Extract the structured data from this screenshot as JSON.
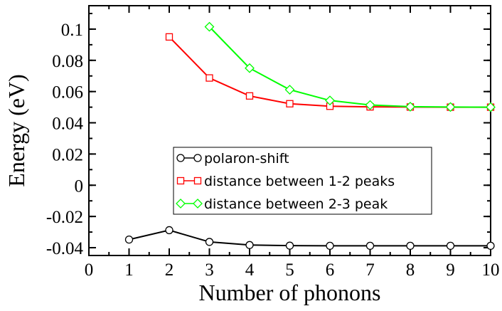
{
  "chart_data": {
    "type": "line",
    "xlabel": "Number of phonons",
    "ylabel": "Energy (eV)",
    "xlim": [
      0,
      10
    ],
    "ylim": [
      -0.045,
      0.115
    ],
    "xticks": [
      0,
      1,
      2,
      3,
      4,
      5,
      6,
      7,
      8,
      9,
      10
    ],
    "xtick_labels": [
      "0",
      "1",
      "2",
      "3",
      "4",
      "5",
      "6",
      "7",
      "8",
      "9",
      "10"
    ],
    "yticks": [
      -0.04,
      -0.02,
      0,
      0.02,
      0.04,
      0.06,
      0.08,
      0.1
    ],
    "ytick_labels": [
      "-0.04",
      "-0.02",
      "0",
      "0.02",
      "0.04",
      "0.06",
      "0.08",
      "0.1"
    ],
    "grid": false,
    "legend_position": "center",
    "series": [
      {
        "name": "polaron-shift",
        "color": "#000000",
        "marker": "circle",
        "x": [
          1,
          2,
          3,
          4,
          5,
          6,
          7,
          8,
          9,
          10
        ],
        "y": [
          -0.0348,
          -0.0288,
          -0.0363,
          -0.0383,
          -0.0387,
          -0.0388,
          -0.0388,
          -0.0388,
          -0.0388,
          -0.0388
        ]
      },
      {
        "name": "distance between 1-2 peaks",
        "color": "#ff0000",
        "marker": "square",
        "x": [
          2,
          3,
          4,
          5,
          6,
          7,
          8,
          9,
          10
        ],
        "y": [
          0.095,
          0.0687,
          0.0572,
          0.0522,
          0.0506,
          0.0502,
          0.0501,
          0.05,
          0.05
        ]
      },
      {
        "name": "distance between 2-3 peak",
        "color": "#00ff00",
        "marker": "diamond",
        "x": [
          3,
          4,
          5,
          6,
          7,
          8,
          9,
          10
        ],
        "y": [
          0.1015,
          0.075,
          0.0612,
          0.0543,
          0.0514,
          0.0503,
          0.0501,
          0.05
        ]
      }
    ]
  }
}
